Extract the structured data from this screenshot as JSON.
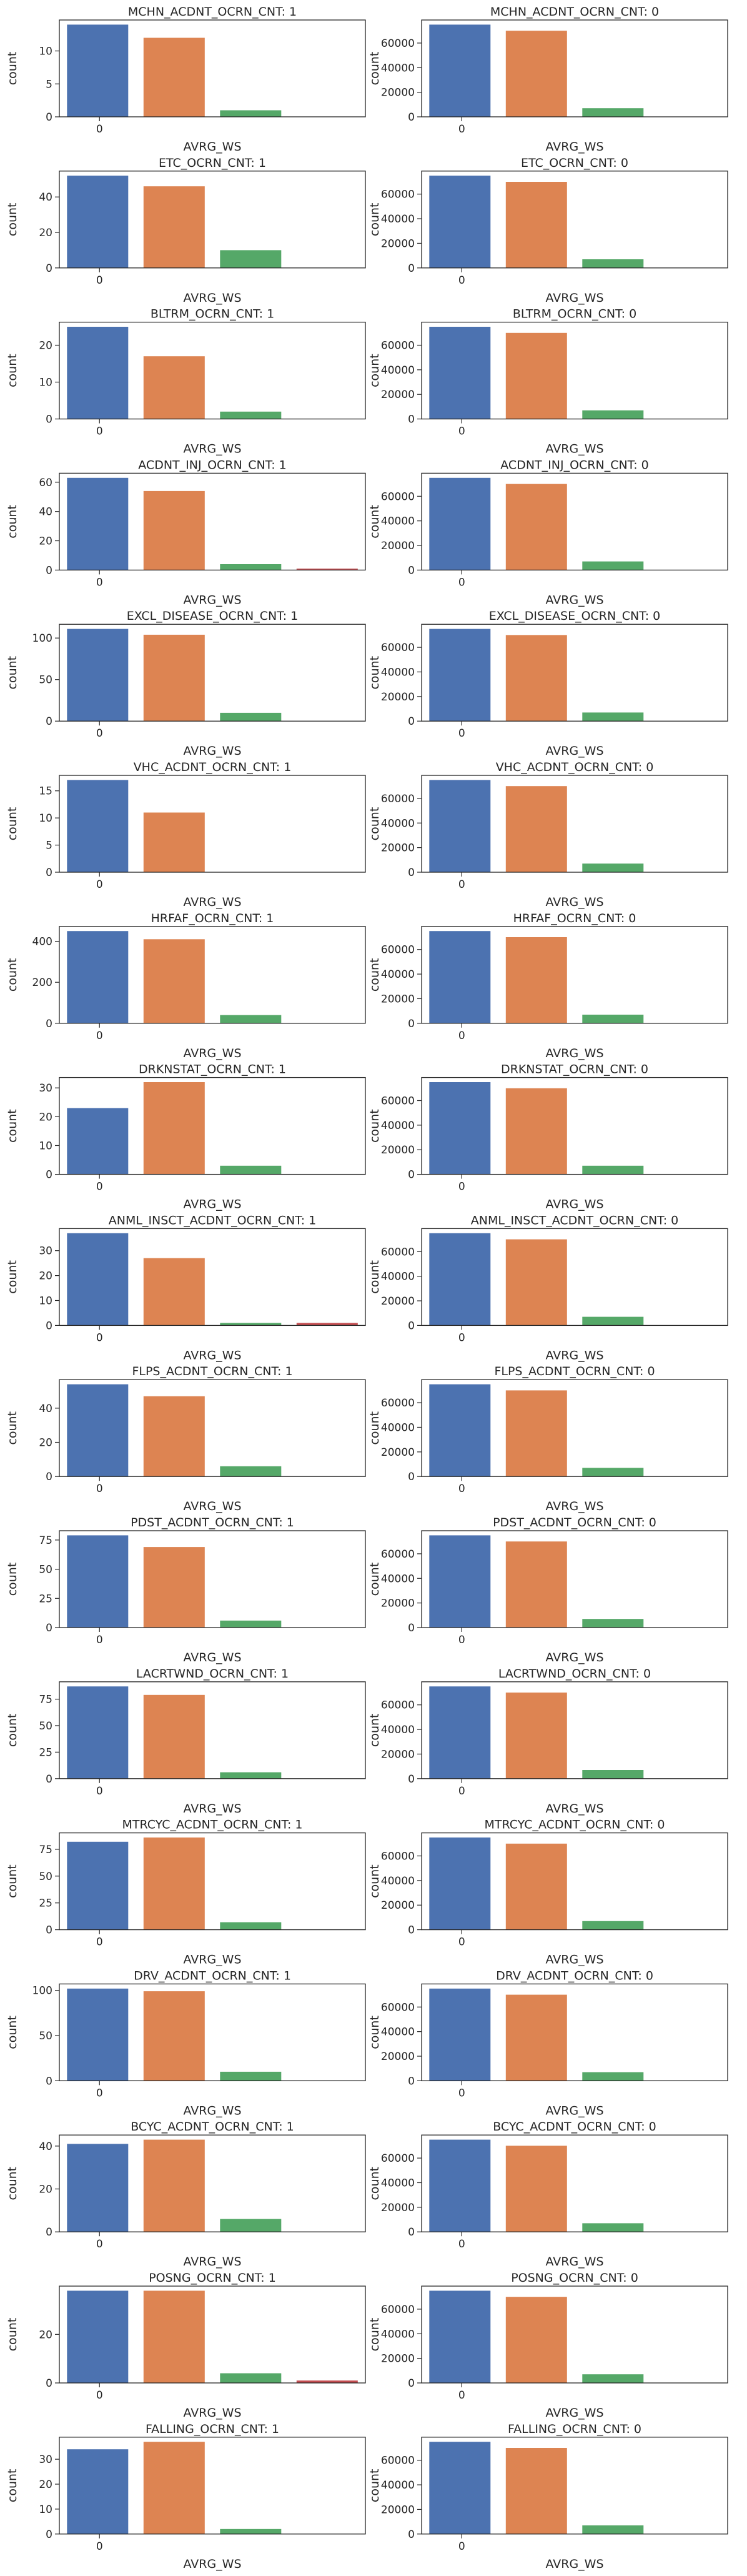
{
  "figure": {
    "colors": [
      "#4c72b0",
      "#dd8452",
      "#55a868",
      "#c44e52"
    ],
    "axis_color": "#262626"
  },
  "chart_data": [
    {
      "type": "bar",
      "title": "MCHN_ACDNT_OCRN_CNT: 1",
      "xlabel": "AVRG_WS",
      "ylabel": "count",
      "x_tick": "0",
      "values": [
        14,
        12,
        1
      ],
      "ylim": [
        0,
        14.7
      ],
      "yticks": [
        0,
        5,
        10
      ]
    },
    {
      "type": "bar",
      "title": "MCHN_ACDNT_OCRN_CNT: 0",
      "xlabel": "AVRG_WS",
      "ylabel": "count",
      "x_tick": "0",
      "values": [
        75000,
        70000,
        7000
      ],
      "ylim": [
        0,
        78750
      ],
      "yticks": [
        0,
        20000,
        40000,
        60000
      ]
    },
    {
      "type": "bar",
      "title": "ETC_OCRN_CNT: 1",
      "xlabel": "AVRG_WS",
      "ylabel": "count",
      "x_tick": "0",
      "values": [
        52,
        46,
        10
      ],
      "ylim": [
        0,
        54.6
      ],
      "yticks": [
        0,
        20,
        40
      ]
    },
    {
      "type": "bar",
      "title": "ETC_OCRN_CNT: 0",
      "xlabel": "AVRG_WS",
      "ylabel": "count",
      "x_tick": "0",
      "values": [
        75000,
        70000,
        7000
      ],
      "ylim": [
        0,
        78750
      ],
      "yticks": [
        0,
        20000,
        40000,
        60000
      ]
    },
    {
      "type": "bar",
      "title": "BLTRM_OCRN_CNT: 1",
      "xlabel": "AVRG_WS",
      "ylabel": "count",
      "x_tick": "0",
      "values": [
        25,
        17,
        2
      ],
      "ylim": [
        0,
        26.25
      ],
      "yticks": [
        0,
        10,
        20
      ]
    },
    {
      "type": "bar",
      "title": "BLTRM_OCRN_CNT: 0",
      "xlabel": "AVRG_WS",
      "ylabel": "count",
      "x_tick": "0",
      "values": [
        75000,
        70000,
        7000
      ],
      "ylim": [
        0,
        78750
      ],
      "yticks": [
        0,
        20000,
        40000,
        60000
      ]
    },
    {
      "type": "bar",
      "title": "ACDNT_INJ_OCRN_CNT: 1",
      "xlabel": "AVRG_WS",
      "ylabel": "count",
      "x_tick": "0",
      "values": [
        63,
        54,
        4,
        1
      ],
      "ylim": [
        0,
        66.15
      ],
      "yticks": [
        0,
        20,
        40,
        60
      ]
    },
    {
      "type": "bar",
      "title": "ACDNT_INJ_OCRN_CNT: 0",
      "xlabel": "AVRG_WS",
      "ylabel": "count",
      "x_tick": "0",
      "values": [
        75000,
        70000,
        7000
      ],
      "ylim": [
        0,
        78750
      ],
      "yticks": [
        0,
        20000,
        40000,
        60000
      ]
    },
    {
      "type": "bar",
      "title": "EXCL_DISEASE_OCRN_CNT: 1",
      "xlabel": "AVRG_WS",
      "ylabel": "count",
      "x_tick": "0",
      "values": [
        111,
        104,
        10
      ],
      "ylim": [
        0,
        116.55
      ],
      "yticks": [
        0,
        50,
        100
      ]
    },
    {
      "type": "bar",
      "title": "EXCL_DISEASE_OCRN_CNT: 0",
      "xlabel": "AVRG_WS",
      "ylabel": "count",
      "x_tick": "0",
      "values": [
        75000,
        70000,
        7000
      ],
      "ylim": [
        0,
        78750
      ],
      "yticks": [
        0,
        20000,
        40000,
        60000
      ]
    },
    {
      "type": "bar",
      "title": "VHC_ACDNT_OCRN_CNT: 1",
      "xlabel": "AVRG_WS",
      "ylabel": "count",
      "x_tick": "0",
      "values": [
        17,
        11
      ],
      "ylim": [
        0,
        17.85
      ],
      "yticks": [
        0,
        5,
        10,
        15
      ]
    },
    {
      "type": "bar",
      "title": "VHC_ACDNT_OCRN_CNT: 0",
      "xlabel": "AVRG_WS",
      "ylabel": "count",
      "x_tick": "0",
      "values": [
        75000,
        70000,
        7000
      ],
      "ylim": [
        0,
        78750
      ],
      "yticks": [
        0,
        20000,
        40000,
        60000
      ]
    },
    {
      "type": "bar",
      "title": "HRFAF_OCRN_CNT: 1",
      "xlabel": "AVRG_WS",
      "ylabel": "count",
      "x_tick": "0",
      "values": [
        450,
        410,
        40
      ],
      "ylim": [
        0,
        472.5
      ],
      "yticks": [
        0,
        200,
        400
      ]
    },
    {
      "type": "bar",
      "title": "HRFAF_OCRN_CNT: 0",
      "xlabel": "AVRG_WS",
      "ylabel": "count",
      "x_tick": "0",
      "values": [
        75000,
        70000,
        7000
      ],
      "ylim": [
        0,
        78750
      ],
      "yticks": [
        0,
        20000,
        40000,
        60000
      ]
    },
    {
      "type": "bar",
      "title": "DRKNSTAT_OCRN_CNT: 1",
      "xlabel": "AVRG_WS",
      "ylabel": "count",
      "x_tick": "0",
      "values": [
        23,
        32,
        3
      ],
      "ylim": [
        0,
        33.6
      ],
      "yticks": [
        0,
        10,
        20,
        30
      ]
    },
    {
      "type": "bar",
      "title": "DRKNSTAT_OCRN_CNT: 0",
      "xlabel": "AVRG_WS",
      "ylabel": "count",
      "x_tick": "0",
      "values": [
        75000,
        70000,
        7000
      ],
      "ylim": [
        0,
        78750
      ],
      "yticks": [
        0,
        20000,
        40000,
        60000
      ]
    },
    {
      "type": "bar",
      "title": "ANML_INSCT_ACDNT_OCRN_CNT: 1",
      "xlabel": "AVRG_WS",
      "ylabel": "count",
      "x_tick": "0",
      "values": [
        37,
        27,
        1,
        1
      ],
      "ylim": [
        0,
        38.85
      ],
      "yticks": [
        0,
        10,
        20,
        30
      ]
    },
    {
      "type": "bar",
      "title": "ANML_INSCT_ACDNT_OCRN_CNT: 0",
      "xlabel": "AVRG_WS",
      "ylabel": "count",
      "x_tick": "0",
      "values": [
        75000,
        70000,
        7000
      ],
      "ylim": [
        0,
        78750
      ],
      "yticks": [
        0,
        20000,
        40000,
        60000
      ]
    },
    {
      "type": "bar",
      "title": "FLPS_ACDNT_OCRN_CNT: 1",
      "xlabel": "AVRG_WS",
      "ylabel": "count",
      "x_tick": "0",
      "values": [
        54,
        47,
        6
      ],
      "ylim": [
        0,
        56.7
      ],
      "yticks": [
        0,
        20,
        40
      ]
    },
    {
      "type": "bar",
      "title": "FLPS_ACDNT_OCRN_CNT: 0",
      "xlabel": "AVRG_WS",
      "ylabel": "count",
      "x_tick": "0",
      "values": [
        75000,
        70000,
        7000
      ],
      "ylim": [
        0,
        78750
      ],
      "yticks": [
        0,
        20000,
        40000,
        60000
      ]
    },
    {
      "type": "bar",
      "title": "PDST_ACDNT_OCRN_CNT: 1",
      "xlabel": "AVRG_WS",
      "ylabel": "count",
      "x_tick": "0",
      "values": [
        79,
        69,
        6
      ],
      "ylim": [
        0,
        82.95
      ],
      "yticks": [
        0,
        25,
        50,
        75
      ]
    },
    {
      "type": "bar",
      "title": "PDST_ACDNT_OCRN_CNT: 0",
      "xlabel": "AVRG_WS",
      "ylabel": "count",
      "x_tick": "0",
      "values": [
        75000,
        70000,
        7000
      ],
      "ylim": [
        0,
        78750
      ],
      "yticks": [
        0,
        20000,
        40000,
        60000
      ]
    },
    {
      "type": "bar",
      "title": "LACRTWND_OCRN_CNT: 1",
      "xlabel": "AVRG_WS",
      "ylabel": "count",
      "x_tick": "0",
      "values": [
        87,
        79,
        6
      ],
      "ylim": [
        0,
        91.35
      ],
      "yticks": [
        0,
        25,
        50,
        75
      ]
    },
    {
      "type": "bar",
      "title": "LACRTWND_OCRN_CNT: 0",
      "xlabel": "AVRG_WS",
      "ylabel": "count",
      "x_tick": "0",
      "values": [
        75000,
        70000,
        7000
      ],
      "ylim": [
        0,
        78750
      ],
      "yticks": [
        0,
        20000,
        40000,
        60000
      ]
    },
    {
      "type": "bar",
      "title": "MTRCYC_ACDNT_OCRN_CNT: 1",
      "xlabel": "AVRG_WS",
      "ylabel": "count",
      "x_tick": "0",
      "values": [
        82,
        86,
        7
      ],
      "ylim": [
        0,
        90.3
      ],
      "yticks": [
        0,
        25,
        50,
        75
      ]
    },
    {
      "type": "bar",
      "title": "MTRCYC_ACDNT_OCRN_CNT: 0",
      "xlabel": "AVRG_WS",
      "ylabel": "count",
      "x_tick": "0",
      "values": [
        75000,
        70000,
        7000
      ],
      "ylim": [
        0,
        78750
      ],
      "yticks": [
        0,
        20000,
        40000,
        60000
      ]
    },
    {
      "type": "bar",
      "title": "DRV_ACDNT_OCRN_CNT: 1",
      "xlabel": "AVRG_WS",
      "ylabel": "count",
      "x_tick": "0",
      "values": [
        102,
        99,
        10
      ],
      "ylim": [
        0,
        107.1
      ],
      "yticks": [
        0,
        50,
        100
      ]
    },
    {
      "type": "bar",
      "title": "DRV_ACDNT_OCRN_CNT: 0",
      "xlabel": "AVRG_WS",
      "ylabel": "count",
      "x_tick": "0",
      "values": [
        75000,
        70000,
        7000
      ],
      "ylim": [
        0,
        78750
      ],
      "yticks": [
        0,
        20000,
        40000,
        60000
      ]
    },
    {
      "type": "bar",
      "title": "BCYC_ACDNT_OCRN_CNT: 1",
      "xlabel": "AVRG_WS",
      "ylabel": "count",
      "x_tick": "0",
      "values": [
        41,
        43,
        6
      ],
      "ylim": [
        0,
        45.15
      ],
      "yticks": [
        0,
        20,
        40
      ]
    },
    {
      "type": "bar",
      "title": "BCYC_ACDNT_OCRN_CNT: 0",
      "xlabel": "AVRG_WS",
      "ylabel": "count",
      "x_tick": "0",
      "values": [
        75000,
        70000,
        7000
      ],
      "ylim": [
        0,
        78750
      ],
      "yticks": [
        0,
        20000,
        40000,
        60000
      ]
    },
    {
      "type": "bar",
      "title": "POSNG_OCRN_CNT: 1",
      "xlabel": "AVRG_WS",
      "ylabel": "count",
      "x_tick": "0",
      "values": [
        38,
        38,
        4,
        1
      ],
      "ylim": [
        0,
        39.9
      ],
      "yticks": [
        0,
        20
      ]
    },
    {
      "type": "bar",
      "title": "POSNG_OCRN_CNT: 0",
      "xlabel": "AVRG_WS",
      "ylabel": "count",
      "x_tick": "0",
      "values": [
        75000,
        70000,
        7000
      ],
      "ylim": [
        0,
        78750
      ],
      "yticks": [
        0,
        20000,
        40000,
        60000
      ]
    },
    {
      "type": "bar",
      "title": "FALLING_OCRN_CNT: 1",
      "xlabel": "AVRG_WS",
      "ylabel": "count",
      "x_tick": "0",
      "values": [
        34,
        37,
        2
      ],
      "ylim": [
        0,
        38.85
      ],
      "yticks": [
        0,
        10,
        20,
        30
      ]
    },
    {
      "type": "bar",
      "title": "FALLING_OCRN_CNT: 0",
      "xlabel": "AVRG_WS",
      "ylabel": "count",
      "x_tick": "0",
      "values": [
        75000,
        70000,
        7000
      ],
      "ylim": [
        0,
        78750
      ],
      "yticks": [
        0,
        20000,
        40000,
        60000
      ]
    }
  ]
}
